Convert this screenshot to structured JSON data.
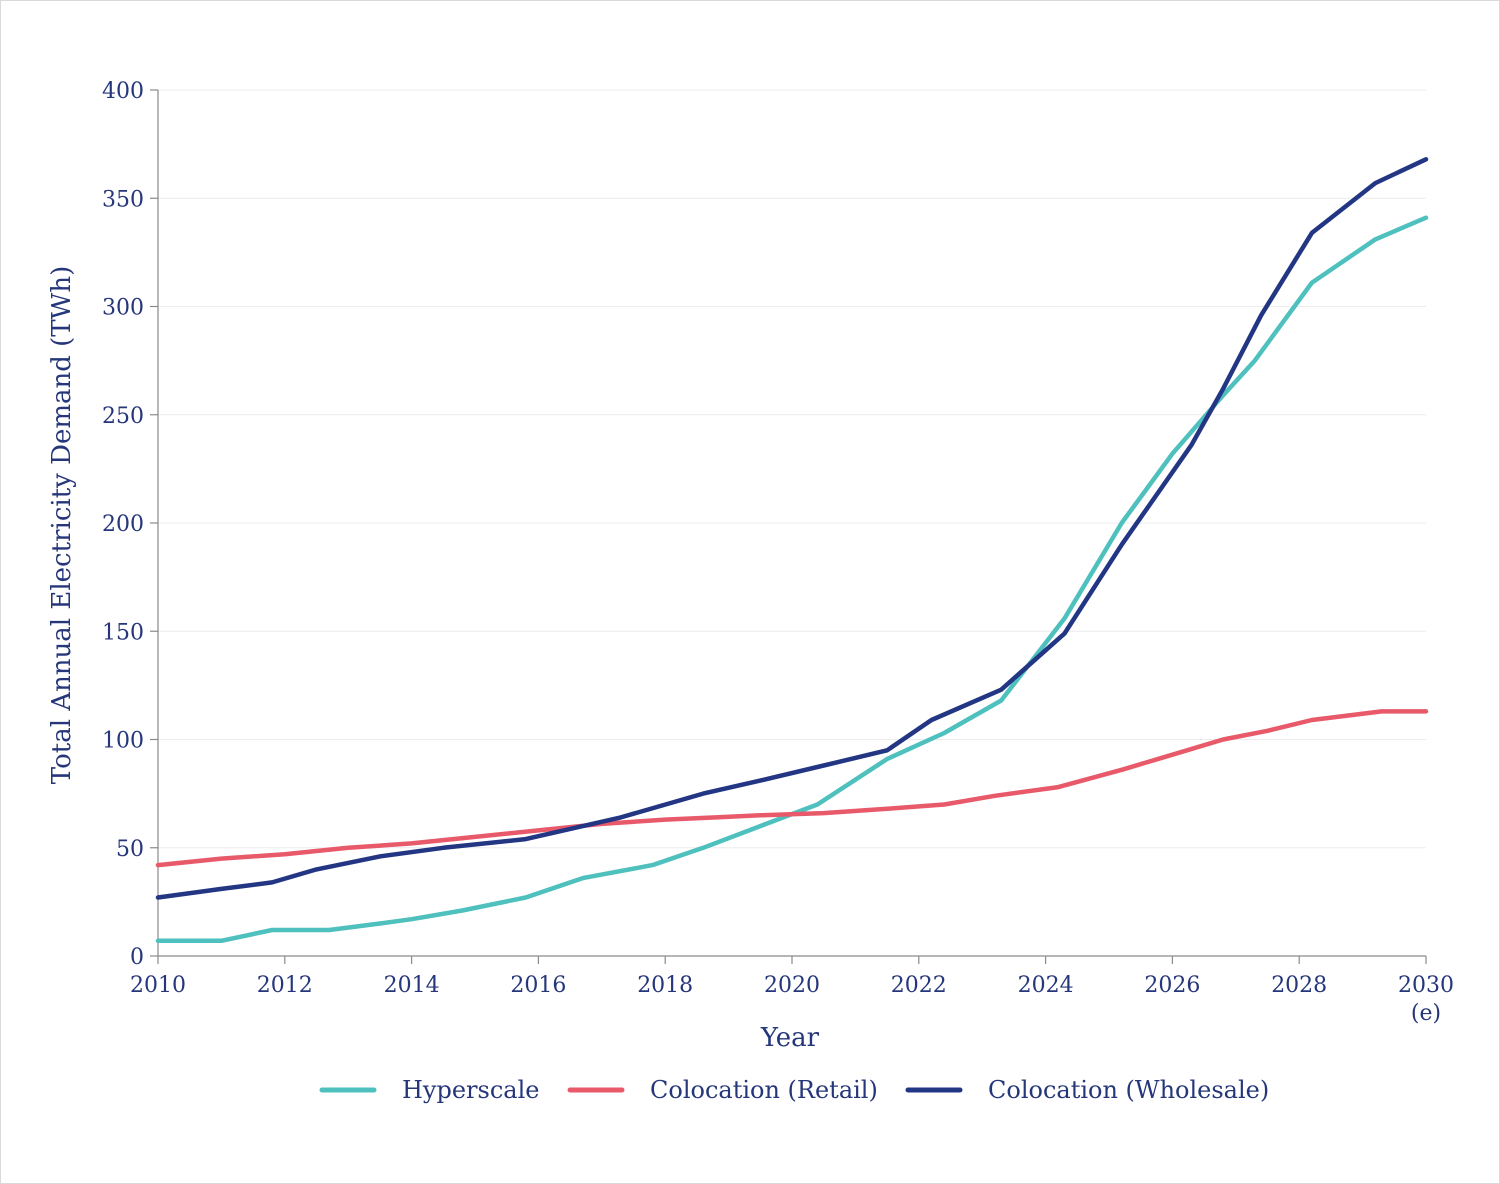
{
  "chart_data": {
    "type": "line",
    "title": "",
    "xlabel": "Year",
    "ylabel": "Total Annual Electricity Demand (TWh)",
    "xlim": [
      2010,
      2030
    ],
    "ylim": [
      0,
      400
    ],
    "grid": true,
    "legend_position": "bottom",
    "y_ticks": [
      0,
      50,
      100,
      150,
      200,
      250,
      300,
      350,
      400
    ],
    "x_ticks": [
      {
        "value": 2010,
        "label": "2010"
      },
      {
        "value": 2012,
        "label": "2012"
      },
      {
        "value": 2014,
        "label": "2014"
      },
      {
        "value": 2016,
        "label": "2016"
      },
      {
        "value": 2018,
        "label": "2018"
      },
      {
        "value": 2020,
        "label": "2020"
      },
      {
        "value": 2022,
        "label": "2022"
      },
      {
        "value": 2024,
        "label": "2024"
      },
      {
        "value": 2026,
        "label": "2026"
      },
      {
        "value": 2028,
        "label": "2028"
      },
      {
        "value": 2030,
        "label": "2030",
        "sublabel": "(e)"
      }
    ],
    "series": [
      {
        "name": "Hyperscale",
        "color": "#4ec0bd",
        "points": [
          [
            2010,
            7
          ],
          [
            2011,
            7
          ],
          [
            2011.8,
            12
          ],
          [
            2012.7,
            12
          ],
          [
            2013.5,
            15
          ],
          [
            2014,
            17
          ],
          [
            2014.8,
            21
          ],
          [
            2015.8,
            27
          ],
          [
            2016.7,
            36
          ],
          [
            2017.8,
            42
          ],
          [
            2018.6,
            50
          ],
          [
            2019.5,
            60
          ],
          [
            2020.4,
            70
          ],
          [
            2021.5,
            91
          ],
          [
            2022.4,
            103
          ],
          [
            2023.3,
            118
          ],
          [
            2024.3,
            156
          ],
          [
            2025.2,
            200
          ],
          [
            2026,
            232
          ],
          [
            2026.8,
            259
          ],
          [
            2027.3,
            275
          ],
          [
            2028.2,
            311
          ],
          [
            2029.2,
            331
          ],
          [
            2030,
            341
          ]
        ]
      },
      {
        "name": "Colocation (Retail)",
        "color": "#e85a6a",
        "points": [
          [
            2010,
            42
          ],
          [
            2011,
            45
          ],
          [
            2012,
            47
          ],
          [
            2013,
            50
          ],
          [
            2014,
            52
          ],
          [
            2015,
            55
          ],
          [
            2016,
            58
          ],
          [
            2017,
            61
          ],
          [
            2018,
            63
          ],
          [
            2018.8,
            64
          ],
          [
            2019.5,
            65
          ],
          [
            2020.5,
            66
          ],
          [
            2021.5,
            68
          ],
          [
            2022.4,
            70
          ],
          [
            2023.2,
            74
          ],
          [
            2024.2,
            78
          ],
          [
            2025.2,
            86
          ],
          [
            2026,
            93
          ],
          [
            2026.8,
            100
          ],
          [
            2027.5,
            104
          ],
          [
            2028.2,
            109
          ],
          [
            2029.3,
            113
          ],
          [
            2030,
            113
          ]
        ]
      },
      {
        "name": "Colocation (Wholesale)",
        "color": "#233684",
        "points": [
          [
            2010,
            27
          ],
          [
            2011,
            31
          ],
          [
            2011.8,
            34
          ],
          [
            2012.5,
            40
          ],
          [
            2013.5,
            46
          ],
          [
            2014.5,
            50
          ],
          [
            2015.8,
            54
          ],
          [
            2016.7,
            60
          ],
          [
            2017.3,
            64
          ],
          [
            2018.6,
            75
          ],
          [
            2019.5,
            81
          ],
          [
            2020.5,
            88
          ],
          [
            2021.5,
            95
          ],
          [
            2022.2,
            109
          ],
          [
            2023.3,
            123
          ],
          [
            2024.3,
            149
          ],
          [
            2025.2,
            190
          ],
          [
            2026.3,
            236
          ],
          [
            2026.8,
            262
          ],
          [
            2027.4,
            296
          ],
          [
            2028.2,
            334
          ],
          [
            2029.2,
            357
          ],
          [
            2030,
            368
          ]
        ]
      }
    ]
  }
}
